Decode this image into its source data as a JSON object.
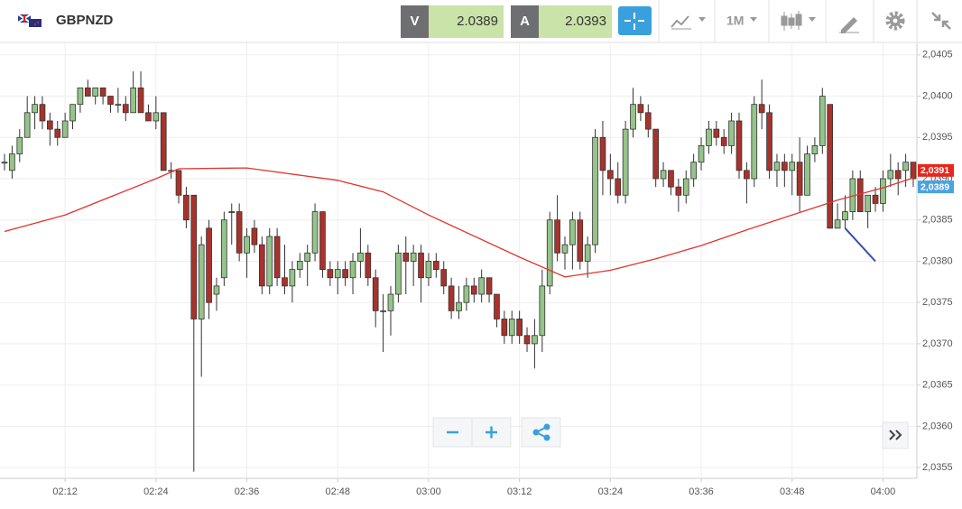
{
  "toolbar": {
    "symbol": "GBPNZD",
    "sell_label": "V",
    "sell_price": "2.0389",
    "buy_label": "A",
    "buy_price": "2.0393",
    "timeframe": "1M"
  },
  "chart_data": {
    "type": "candlestick",
    "x": [
      "02:04",
      "02:05",
      "02:06",
      "02:07",
      "02:08",
      "02:09",
      "02:10",
      "02:11",
      "02:12",
      "02:13",
      "02:14",
      "02:15",
      "02:16",
      "02:17",
      "02:18",
      "02:19",
      "02:20",
      "02:21",
      "02:22",
      "02:23",
      "02:24",
      "02:25",
      "02:26",
      "02:27",
      "02:28",
      "02:29",
      "02:30",
      "02:31",
      "02:32",
      "02:33",
      "02:34",
      "02:35",
      "02:36",
      "02:37",
      "02:38",
      "02:39",
      "02:40",
      "02:41",
      "02:42",
      "02:43",
      "02:44",
      "02:45",
      "02:46",
      "02:47",
      "02:48",
      "02:49",
      "02:50",
      "02:51",
      "02:52",
      "02:53",
      "02:54",
      "02:55",
      "02:56",
      "02:57",
      "02:58",
      "02:59",
      "03:00",
      "03:01",
      "03:02",
      "03:03",
      "03:04",
      "03:05",
      "03:06",
      "03:07",
      "03:08",
      "03:09",
      "03:10",
      "03:11",
      "03:12",
      "03:13",
      "03:14",
      "03:15",
      "03:16",
      "03:17",
      "03:18",
      "03:19",
      "03:20",
      "03:21",
      "03:22",
      "03:23",
      "03:24",
      "03:25",
      "03:26",
      "03:27",
      "03:28",
      "03:29",
      "03:30",
      "03:31",
      "03:32",
      "03:33",
      "03:34",
      "03:35",
      "03:36",
      "03:37",
      "03:38",
      "03:39",
      "03:40",
      "03:41",
      "03:42",
      "03:43",
      "03:44",
      "03:45",
      "03:46",
      "03:47",
      "03:48",
      "03:49",
      "03:50",
      "03:51",
      "03:52",
      "03:53",
      "03:54",
      "03:55",
      "03:56",
      "03:57",
      "03:58",
      "03:59",
      "04:00",
      "04:01",
      "04:02",
      "04:03",
      "04:04"
    ],
    "ohlc": [
      [
        2.0392,
        2.0393,
        2.0391,
        2.0392
      ],
      [
        2.0391,
        2.0394,
        2.039,
        2.0393
      ],
      [
        2.0393,
        2.0396,
        2.0392,
        2.0395
      ],
      [
        2.0395,
        2.04,
        2.0395,
        2.0398
      ],
      [
        2.0398,
        2.04,
        2.0396,
        2.0399
      ],
      [
        2.0399,
        2.04,
        2.0396,
        2.0397
      ],
      [
        2.0397,
        2.0398,
        2.0394,
        2.0396
      ],
      [
        2.0396,
        2.0397,
        2.0394,
        2.0395
      ],
      [
        2.0395,
        2.0398,
        2.0395,
        2.0397
      ],
      [
        2.0397,
        2.0399,
        2.0396,
        2.0399
      ],
      [
        2.0399,
        2.0401,
        2.0398,
        2.0401
      ],
      [
        2.0401,
        2.0402,
        2.04,
        2.04
      ],
      [
        2.04,
        2.0401,
        2.0399,
        2.0401
      ],
      [
        2.0401,
        2.0401,
        2.0399,
        2.04
      ],
      [
        2.04,
        2.04,
        2.0398,
        2.0399
      ],
      [
        2.0399,
        2.0401,
        2.0398,
        2.0399
      ],
      [
        2.0399,
        2.04,
        2.0397,
        2.0398
      ],
      [
        2.0398,
        2.0403,
        2.0398,
        2.0401
      ],
      [
        2.0401,
        2.0403,
        2.0398,
        2.0398
      ],
      [
        2.0398,
        2.0399,
        2.0397,
        2.0397
      ],
      [
        2.0397,
        2.04,
        2.0396,
        2.0398
      ],
      [
        2.0398,
        2.0398,
        2.0391,
        2.0391
      ],
      [
        2.0391,
        2.0392,
        2.039,
        2.0391
      ],
      [
        2.0391,
        2.0391,
        2.0387,
        2.0388
      ],
      [
        2.0388,
        2.0389,
        2.0384,
        2.0385
      ],
      [
        2.0388,
        2.0388,
        2.03545,
        2.0373
      ],
      [
        2.0373,
        2.0383,
        2.0366,
        2.0382
      ],
      [
        2.0384,
        2.0385,
        2.0373,
        2.0375
      ],
      [
        2.0376,
        2.0378,
        2.0374,
        2.0377
      ],
      [
        2.0378,
        2.0386,
        2.0377,
        2.0385
      ],
      [
        2.0386,
        2.0387,
        2.0382,
        2.0386
      ],
      [
        2.0386,
        2.0387,
        2.038,
        2.0381
      ],
      [
        2.0381,
        2.0384,
        2.0378,
        2.0383
      ],
      [
        2.0384,
        2.0385,
        2.0381,
        2.0382
      ],
      [
        2.0382,
        2.0383,
        2.0376,
        2.0377
      ],
      [
        2.0377,
        2.0384,
        2.0376,
        2.0383
      ],
      [
        2.0383,
        2.0384,
        2.0377,
        2.0378
      ],
      [
        2.0378,
        2.0382,
        2.0376,
        2.0377
      ],
      [
        2.0377,
        2.038,
        2.0375,
        2.0379
      ],
      [
        2.0379,
        2.0381,
        2.0378,
        2.038
      ],
      [
        2.038,
        2.0382,
        2.0377,
        2.0381
      ],
      [
        2.0381,
        2.0387,
        2.038,
        2.0386
      ],
      [
        2.0386,
        2.0386,
        2.0378,
        2.0379
      ],
      [
        2.0379,
        2.038,
        2.0377,
        2.0378
      ],
      [
        2.0378,
        2.038,
        2.0376,
        2.0379
      ],
      [
        2.0379,
        2.038,
        2.0377,
        2.0378
      ],
      [
        2.0378,
        2.0381,
        2.0376,
        2.038
      ],
      [
        2.038,
        2.0384,
        2.0378,
        2.0381
      ],
      [
        2.0381,
        2.0382,
        2.0377,
        2.0378
      ],
      [
        2.0378,
        2.0379,
        2.0372,
        2.0374
      ],
      [
        2.0374,
        2.0376,
        2.0369,
        2.0374
      ],
      [
        2.0374,
        2.0377,
        2.0371,
        2.0376
      ],
      [
        2.0376,
        2.0382,
        2.0375,
        2.0381
      ],
      [
        2.0381,
        2.0383,
        2.0376,
        2.038
      ],
      [
        2.038,
        2.0382,
        2.0377,
        2.0381
      ],
      [
        2.0381,
        2.0382,
        2.0375,
        2.0378
      ],
      [
        2.0378,
        2.0381,
        2.0377,
        2.038
      ],
      [
        2.038,
        2.0381,
        2.0378,
        2.0379
      ],
      [
        2.0379,
        2.038,
        2.0376,
        2.0377
      ],
      [
        2.0377,
        2.0378,
        2.0373,
        2.0374
      ],
      [
        2.0374,
        2.0377,
        2.0373,
        2.0375
      ],
      [
        2.0375,
        2.0378,
        2.0374,
        2.0377
      ],
      [
        2.0377,
        2.0378,
        2.0375,
        2.0376
      ],
      [
        2.0376,
        2.0379,
        2.0375,
        2.0378
      ],
      [
        2.0378,
        2.0378,
        2.0375,
        2.0376
      ],
      [
        2.0376,
        2.0376,
        2.0372,
        2.0373
      ],
      [
        2.0373,
        2.0374,
        2.037,
        2.0371
      ],
      [
        2.0371,
        2.0374,
        2.037,
        2.0373
      ],
      [
        2.0373,
        2.0374,
        2.037,
        2.0371
      ],
      [
        2.0371,
        2.0372,
        2.0369,
        2.037
      ],
      [
        2.037,
        2.0373,
        2.0367,
        2.0371
      ],
      [
        2.0371,
        2.0379,
        2.0369,
        2.0377
      ],
      [
        2.0377,
        2.0386,
        2.0376,
        2.0385
      ],
      [
        2.0385,
        2.0388,
        2.038,
        2.0381
      ],
      [
        2.0381,
        2.0383,
        2.0379,
        2.0382
      ],
      [
        2.0382,
        2.0386,
        2.0379,
        2.0385
      ],
      [
        2.0385,
        2.0386,
        2.0379,
        2.038
      ],
      [
        2.038,
        2.0383,
        2.0378,
        2.0382
      ],
      [
        2.0382,
        2.0396,
        2.0381,
        2.0395
      ],
      [
        2.0395,
        2.0397,
        2.0388,
        2.0391
      ],
      [
        2.0391,
        2.0393,
        2.0388,
        2.039
      ],
      [
        2.039,
        2.0392,
        2.0387,
        2.0388
      ],
      [
        2.0388,
        2.0397,
        2.0387,
        2.0396
      ],
      [
        2.0396,
        2.0401,
        2.0395,
        2.0399
      ],
      [
        2.0399,
        2.04,
        2.0397,
        2.0398
      ],
      [
        2.0398,
        2.0399,
        2.0395,
        2.0396
      ],
      [
        2.0396,
        2.0396,
        2.0389,
        2.039
      ],
      [
        2.039,
        2.0392,
        2.0389,
        2.0391
      ],
      [
        2.0391,
        2.0391,
        2.0388,
        2.0389
      ],
      [
        2.0389,
        2.039,
        2.0386,
        2.0388
      ],
      [
        2.0388,
        2.0391,
        2.0387,
        2.039
      ],
      [
        2.039,
        2.0393,
        2.0389,
        2.0392
      ],
      [
        2.0392,
        2.0395,
        2.0391,
        2.0394
      ],
      [
        2.0394,
        2.0397,
        2.0393,
        2.0396
      ],
      [
        2.0396,
        2.0397,
        2.0394,
        2.0395
      ],
      [
        2.0395,
        2.0396,
        2.0393,
        2.0394
      ],
      [
        2.0394,
        2.0398,
        2.0393,
        2.0397
      ],
      [
        2.0397,
        2.0398,
        2.039,
        2.0391
      ],
      [
        2.0391,
        2.0392,
        2.0387,
        2.039
      ],
      [
        2.039,
        2.04,
        2.0389,
        2.0399
      ],
      [
        2.0399,
        2.0402,
        2.0396,
        2.0398
      ],
      [
        2.0398,
        2.0399,
        2.039,
        2.0391
      ],
      [
        2.0391,
        2.0393,
        2.0389,
        2.0392
      ],
      [
        2.0392,
        2.0393,
        2.0389,
        2.0391
      ],
      [
        2.0391,
        2.0393,
        2.0388,
        2.0392
      ],
      [
        2.0392,
        2.0395,
        2.0386,
        2.0388
      ],
      [
        2.0388,
        2.0394,
        2.0388,
        2.0393
      ],
      [
        2.0393,
        2.0395,
        2.0392,
        2.0394
      ],
      [
        2.0394,
        2.0401,
        2.0393,
        2.04
      ],
      [
        2.0399,
        2.0399,
        2.0384,
        2.0384
      ],
      [
        2.0384,
        2.0387,
        2.0384,
        2.0385
      ],
      [
        2.0385,
        2.0388,
        2.0384,
        2.0386
      ],
      [
        2.0386,
        2.0391,
        2.0385,
        2.039
      ],
      [
        2.039,
        2.0391,
        2.0386,
        2.0386
      ],
      [
        2.0386,
        2.0388,
        2.0384,
        2.0388
      ],
      [
        2.0388,
        2.0389,
        2.0386,
        2.0387
      ],
      [
        2.0387,
        2.0391,
        2.0386,
        2.039
      ],
      [
        2.039,
        2.0393,
        2.0389,
        2.0391
      ],
      [
        2.0391,
        2.0392,
        2.0388,
        2.039
      ],
      [
        2.0391,
        2.0393,
        2.0389,
        2.0392
      ],
      [
        2.0392,
        2.0392,
        2.0389,
        2.039
      ]
    ],
    "up_color": "#95c489",
    "down_color": "#a9322c",
    "ma": {
      "color": "#e0342e",
      "x": [
        "02:04",
        "02:12",
        "02:24",
        "02:27",
        "02:36",
        "02:48",
        "02:54",
        "03:00",
        "03:12",
        "03:18",
        "03:24",
        "03:30",
        "03:36",
        "03:42",
        "03:48",
        "03:54",
        "04:00",
        "04:04"
      ],
      "values": [
        2.03836,
        2.03856,
        2.039,
        2.03912,
        2.03913,
        2.03898,
        2.03884,
        2.03856,
        2.03805,
        2.03781,
        2.03789,
        2.03803,
        2.03819,
        2.03838,
        2.03856,
        2.03874,
        2.03889,
        2.03901
      ]
    },
    "trendline": {
      "color": "#3b4aa8",
      "x": [
        "03:55",
        "03:59"
      ],
      "values": [
        2.0384,
        2.038
      ]
    },
    "price_labels": [
      {
        "value": 2.0391,
        "label": "2,0391",
        "color": "#e8261c"
      },
      {
        "value": 2.0389,
        "label": "2,0389",
        "color": "#4aa3df"
      }
    ],
    "ylim": [
      2.03537,
      2.04064
    ],
    "yticks": [
      {
        "value": 2.0405,
        "label": "2,0405"
      },
      {
        "value": 2.04,
        "label": "2,0400"
      },
      {
        "value": 2.0395,
        "label": "2,0395"
      },
      {
        "value": 2.039,
        "label": "2,0390"
      },
      {
        "value": 2.0385,
        "label": "2,0385"
      },
      {
        "value": 2.038,
        "label": "2,0380"
      },
      {
        "value": 2.0375,
        "label": "2,0375"
      },
      {
        "value": 2.037,
        "label": "2,0370"
      },
      {
        "value": 2.0365,
        "label": "2,0365"
      },
      {
        "value": 2.036,
        "label": "2,0360"
      },
      {
        "value": 2.0355,
        "label": "2,0355"
      }
    ],
    "xticks": [
      "02:12",
      "02:24",
      "02:36",
      "02:48",
      "03:00",
      "03:12",
      "03:24",
      "03:36",
      "03:48",
      "04:00"
    ],
    "grid": true
  }
}
